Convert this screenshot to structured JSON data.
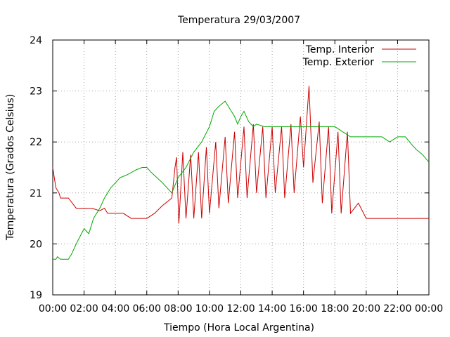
{
  "chart_data": {
    "type": "line",
    "title": "Temperatura 29/03/2007",
    "xlabel": "Tiempo (Hora Local Argentina)",
    "ylabel": "Temperatura (Grados Celsius)",
    "xlim": [
      0,
      24
    ],
    "ylim": [
      19,
      24
    ],
    "x_ticks": [
      "00:00",
      "02:00",
      "04:00",
      "06:00",
      "08:00",
      "10:00",
      "12:00",
      "14:00",
      "16:00",
      "18:00",
      "20:00",
      "22:00",
      "00:00"
    ],
    "y_ticks": [
      "19",
      "20",
      "21",
      "22",
      "23",
      "24"
    ],
    "grid": true,
    "legend_position": "top-right",
    "series": [
      {
        "name": "Temp. Interior",
        "color": "#cc0000",
        "x": [
          0,
          0.1,
          0.2,
          0.4,
          0.5,
          1.0,
          1.5,
          2.0,
          2.5,
          3.0,
          3.3,
          3.5,
          3.7,
          4.0,
          4.5,
          5.0,
          5.5,
          6.0,
          6.5,
          7.0,
          7.6,
          7.8,
          7.9,
          8.05,
          8.3,
          8.5,
          8.8,
          9.0,
          9.3,
          9.5,
          9.8,
          10.0,
          10.4,
          10.6,
          11.0,
          11.2,
          11.6,
          11.8,
          12.2,
          12.4,
          12.8,
          13.0,
          13.4,
          13.6,
          14.0,
          14.2,
          14.6,
          14.8,
          15.2,
          15.4,
          15.8,
          16.0,
          16.35,
          16.6,
          17.0,
          17.2,
          17.6,
          17.8,
          18.2,
          18.4,
          18.8,
          19.0,
          19.5,
          20.0,
          21.0,
          22.0,
          23.0,
          24.0
        ],
        "y": [
          21.5,
          21.3,
          21.1,
          21.0,
          20.9,
          20.9,
          20.7,
          20.7,
          20.7,
          20.65,
          20.7,
          20.6,
          20.6,
          20.6,
          20.6,
          20.5,
          20.5,
          20.5,
          20.6,
          20.75,
          20.9,
          21.5,
          21.7,
          20.4,
          21.8,
          20.5,
          21.75,
          20.5,
          21.8,
          20.5,
          21.9,
          20.6,
          22.0,
          20.7,
          22.1,
          20.8,
          22.2,
          20.9,
          22.3,
          20.9,
          22.35,
          21.0,
          22.3,
          20.9,
          22.3,
          21.0,
          22.3,
          20.9,
          22.35,
          21.0,
          22.5,
          21.5,
          23.1,
          21.2,
          22.4,
          20.8,
          22.3,
          20.6,
          22.2,
          20.6,
          22.2,
          20.6,
          20.8,
          20.5,
          20.5,
          20.5,
          20.5,
          20.5
        ]
      },
      {
        "name": "Temp. Exterior",
        "color": "#00aa00",
        "x": [
          0,
          0.2,
          0.3,
          0.5,
          1.0,
          1.2,
          1.5,
          2.0,
          2.3,
          2.6,
          3.0,
          3.3,
          3.7,
          4.0,
          4.3,
          4.7,
          5.0,
          5.3,
          5.7,
          6.0,
          6.3,
          7.0,
          7.6,
          8.0,
          8.5,
          9.0,
          9.5,
          10.0,
          10.3,
          10.6,
          10.8,
          11.0,
          11.2,
          11.4,
          11.6,
          11.8,
          12.0,
          12.2,
          12.5,
          12.8,
          13.0,
          13.5,
          14.0,
          14.5,
          15.0,
          15.5,
          16.0,
          17.0,
          18.0,
          18.5,
          19.0,
          20.0,
          21.0,
          21.5,
          22.0,
          22.5,
          22.9,
          23.2,
          23.6,
          24.0
        ],
        "y": [
          19.7,
          19.7,
          19.75,
          19.7,
          19.7,
          19.8,
          20.0,
          20.3,
          20.2,
          20.5,
          20.7,
          20.9,
          21.1,
          21.2,
          21.3,
          21.35,
          21.4,
          21.45,
          21.5,
          21.5,
          21.4,
          21.2,
          21.0,
          21.3,
          21.5,
          21.8,
          22.0,
          22.3,
          22.6,
          22.7,
          22.75,
          22.8,
          22.7,
          22.6,
          22.5,
          22.35,
          22.5,
          22.6,
          22.4,
          22.3,
          22.35,
          22.3,
          22.3,
          22.3,
          22.3,
          22.3,
          22.3,
          22.3,
          22.3,
          22.2,
          22.1,
          22.1,
          22.1,
          22.0,
          22.1,
          22.1,
          21.95,
          21.85,
          21.75,
          21.6
        ]
      }
    ]
  }
}
